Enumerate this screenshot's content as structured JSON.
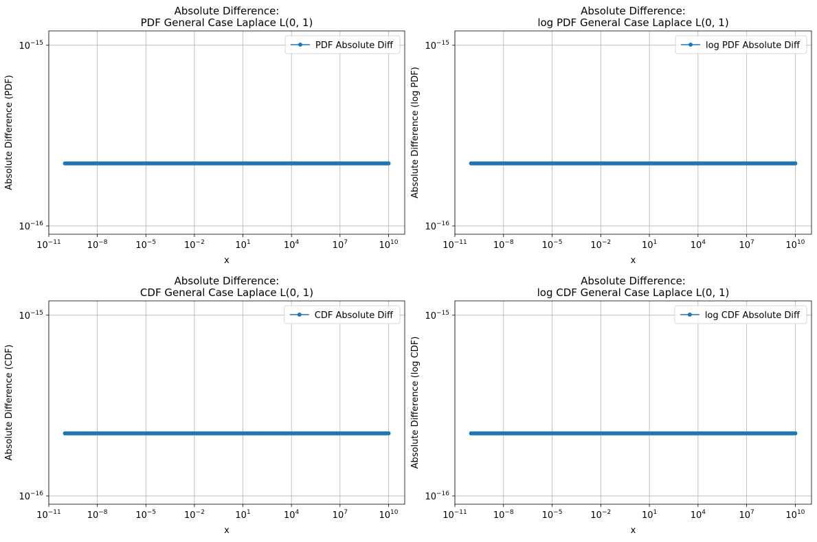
{
  "chart_data": [
    {
      "type": "line",
      "title": "Absolute Difference:\nPDF General Case Laplace L(0, 1)",
      "xlabel": "x",
      "ylabel": "Absolute Difference (PDF)",
      "xscale": "log",
      "yscale": "log",
      "xlim": [
        1e-11,
        100000000000.0
      ],
      "ylim": [
        9e-17,
        1.2e-15
      ],
      "xticks": [
        {
          "value": 1e-11,
          "base": "10",
          "exp": "−11"
        },
        {
          "value": 1e-08,
          "base": "10",
          "exp": "−8"
        },
        {
          "value": 1e-05,
          "base": "10",
          "exp": "−5"
        },
        {
          "value": 0.01,
          "base": "10",
          "exp": "−2"
        },
        {
          "value": 10.0,
          "base": "10",
          "exp": "1"
        },
        {
          "value": 10000.0,
          "base": "10",
          "exp": "4"
        },
        {
          "value": 10000000.0,
          "base": "10",
          "exp": "7"
        },
        {
          "value": 10000000000.0,
          "base": "10",
          "exp": "10"
        }
      ],
      "yticks": [
        {
          "value": 1e-16,
          "base": "10",
          "exp": "−16"
        },
        {
          "value": 1e-15,
          "base": "10",
          "exp": "−15"
        }
      ],
      "grid": true,
      "legend_position": "top-right",
      "series": [
        {
          "name": "PDF Absolute Diff",
          "color": "#1f77b4",
          "marker": "circle",
          "x_range": [
            1e-10,
            10000000000.0
          ],
          "y_constant": 2.22e-16
        }
      ]
    },
    {
      "type": "line",
      "title": "Absolute Difference:\nlog PDF General Case Laplace L(0, 1)",
      "xlabel": "x",
      "ylabel": "Absolute Difference (log PDF)",
      "xscale": "log",
      "yscale": "log",
      "xlim": [
        1e-11,
        100000000000.0
      ],
      "ylim": [
        9e-17,
        1.2e-15
      ],
      "xticks": [
        {
          "value": 1e-11,
          "base": "10",
          "exp": "−11"
        },
        {
          "value": 1e-08,
          "base": "10",
          "exp": "−8"
        },
        {
          "value": 1e-05,
          "base": "10",
          "exp": "−5"
        },
        {
          "value": 0.01,
          "base": "10",
          "exp": "−2"
        },
        {
          "value": 10.0,
          "base": "10",
          "exp": "1"
        },
        {
          "value": 10000.0,
          "base": "10",
          "exp": "4"
        },
        {
          "value": 10000000.0,
          "base": "10",
          "exp": "7"
        },
        {
          "value": 10000000000.0,
          "base": "10",
          "exp": "10"
        }
      ],
      "yticks": [
        {
          "value": 1e-16,
          "base": "10",
          "exp": "−16"
        },
        {
          "value": 1e-15,
          "base": "10",
          "exp": "−15"
        }
      ],
      "grid": true,
      "legend_position": "top-right",
      "series": [
        {
          "name": "log PDF Absolute Diff",
          "color": "#1f77b4",
          "marker": "circle",
          "x_range": [
            1e-10,
            10000000000.0
          ],
          "y_constant": 2.22e-16
        }
      ]
    },
    {
      "type": "line",
      "title": "Absolute Difference:\nCDF General Case Laplace L(0, 1)",
      "xlabel": "x",
      "ylabel": "Absolute Difference (CDF)",
      "xscale": "log",
      "yscale": "log",
      "xlim": [
        1e-11,
        100000000000.0
      ],
      "ylim": [
        9e-17,
        1.2e-15
      ],
      "xticks": [
        {
          "value": 1e-11,
          "base": "10",
          "exp": "−11"
        },
        {
          "value": 1e-08,
          "base": "10",
          "exp": "−8"
        },
        {
          "value": 1e-05,
          "base": "10",
          "exp": "−5"
        },
        {
          "value": 0.01,
          "base": "10",
          "exp": "−2"
        },
        {
          "value": 10.0,
          "base": "10",
          "exp": "1"
        },
        {
          "value": 10000.0,
          "base": "10",
          "exp": "4"
        },
        {
          "value": 10000000.0,
          "base": "10",
          "exp": "7"
        },
        {
          "value": 10000000000.0,
          "base": "10",
          "exp": "10"
        }
      ],
      "yticks": [
        {
          "value": 1e-16,
          "base": "10",
          "exp": "−16"
        },
        {
          "value": 1e-15,
          "base": "10",
          "exp": "−15"
        }
      ],
      "grid": true,
      "legend_position": "top-right",
      "series": [
        {
          "name": "CDF Absolute Diff",
          "color": "#1f77b4",
          "marker": "circle",
          "x_range": [
            1e-10,
            10000000000.0
          ],
          "y_constant": 2.22e-16
        }
      ]
    },
    {
      "type": "line",
      "title": "Absolute Difference:\nlog CDF General Case Laplace L(0, 1)",
      "xlabel": "x",
      "ylabel": "Absolute Difference (log CDF)",
      "xscale": "log",
      "yscale": "log",
      "xlim": [
        1e-11,
        100000000000.0
      ],
      "ylim": [
        9e-17,
        1.2e-15
      ],
      "xticks": [
        {
          "value": 1e-11,
          "base": "10",
          "exp": "−11"
        },
        {
          "value": 1e-08,
          "base": "10",
          "exp": "−8"
        },
        {
          "value": 1e-05,
          "base": "10",
          "exp": "−5"
        },
        {
          "value": 0.01,
          "base": "10",
          "exp": "−2"
        },
        {
          "value": 10.0,
          "base": "10",
          "exp": "1"
        },
        {
          "value": 10000.0,
          "base": "10",
          "exp": "4"
        },
        {
          "value": 10000000.0,
          "base": "10",
          "exp": "7"
        },
        {
          "value": 10000000000.0,
          "base": "10",
          "exp": "10"
        }
      ],
      "yticks": [
        {
          "value": 1e-16,
          "base": "10",
          "exp": "−16"
        },
        {
          "value": 1e-15,
          "base": "10",
          "exp": "−15"
        }
      ],
      "grid": true,
      "legend_position": "top-right",
      "series": [
        {
          "name": "log CDF Absolute Diff",
          "color": "#1f77b4",
          "marker": "circle",
          "x_range": [
            1e-10,
            10000000000.0
          ],
          "y_constant": 2.22e-16
        }
      ]
    }
  ]
}
